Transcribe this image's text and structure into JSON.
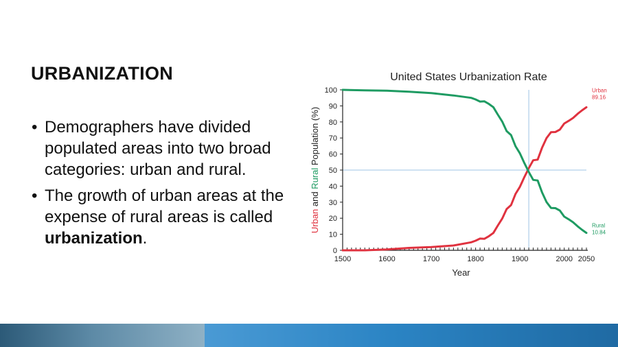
{
  "slide": {
    "title": "URBANIZATION",
    "bullets": [
      {
        "text": "Demographers have divided populated areas into two broad categories: urban and rural."
      },
      {
        "text_before": "The growth of urban areas at the expense of rural areas is called ",
        "bold": "urbanization",
        "text_after": "."
      }
    ],
    "bullet_symbol": "•"
  },
  "colors": {
    "urban": "#e0323f",
    "rural": "#1e9b62",
    "reference_line": "#9ec3e6",
    "text": "#111111"
  },
  "chart_data": {
    "type": "line",
    "title": "United States Urbanization Rate",
    "xlabel": "Year",
    "ylabel_parts": [
      {
        "text": "Urban",
        "color": "#e0323f"
      },
      {
        "text": " and ",
        "color": "#222222"
      },
      {
        "text": "Rural",
        "color": "#1e9b62"
      },
      {
        "text": " Population (%)",
        "color": "#222222"
      }
    ],
    "x_ticks": [
      1500,
      1600,
      1700,
      1800,
      1900,
      2000,
      2050
    ],
    "y_ticks": [
      0,
      10,
      20,
      30,
      40,
      50,
      60,
      70,
      80,
      90,
      100
    ],
    "xlim": [
      1500,
      2050
    ],
    "ylim": [
      0,
      100
    ],
    "grid": false,
    "reference_lines": {
      "x": 1920,
      "y": 50
    },
    "series": [
      {
        "name": "Urban",
        "end_value_label": "89.16",
        "color": "#e0323f",
        "x": [
          1500,
          1550,
          1600,
          1650,
          1700,
          1750,
          1790,
          1800,
          1810,
          1820,
          1830,
          1840,
          1850,
          1860,
          1870,
          1880,
          1890,
          1900,
          1910,
          1920,
          1930,
          1940,
          1950,
          1960,
          1970,
          1980,
          1990,
          2000,
          2010,
          2020,
          2030,
          2040,
          2050
        ],
        "y": [
          0,
          0,
          0.5,
          1.5,
          2,
          3,
          5,
          6,
          7.3,
          7.2,
          8.8,
          10.8,
          15.4,
          19.8,
          25.7,
          28.2,
          35.1,
          39.6,
          45.6,
          51.2,
          56.1,
          56.5,
          64,
          69.9,
          73.6,
          73.7,
          75.2,
          79.0,
          80.7,
          82.5,
          85,
          87.2,
          89.16
        ]
      },
      {
        "name": "Rural",
        "end_value_label": "10.84",
        "color": "#1e9b62",
        "x": [
          1500,
          1550,
          1600,
          1650,
          1700,
          1750,
          1790,
          1800,
          1810,
          1820,
          1830,
          1840,
          1850,
          1860,
          1870,
          1880,
          1890,
          1900,
          1910,
          1920,
          1930,
          1940,
          1950,
          1960,
          1970,
          1980,
          1990,
          2000,
          2010,
          2020,
          2030,
          2040,
          2050
        ],
        "y": [
          100,
          99.7,
          99.5,
          98.8,
          98,
          96.5,
          95,
          94,
          92.7,
          92.8,
          91.2,
          89.2,
          84.6,
          80.2,
          74.3,
          71.8,
          64.9,
          60.4,
          54.4,
          48.8,
          43.9,
          43.5,
          36,
          30.1,
          26.4,
          26.3,
          24.8,
          21.0,
          19.3,
          17.5,
          15,
          12.8,
          10.84
        ]
      }
    ]
  }
}
